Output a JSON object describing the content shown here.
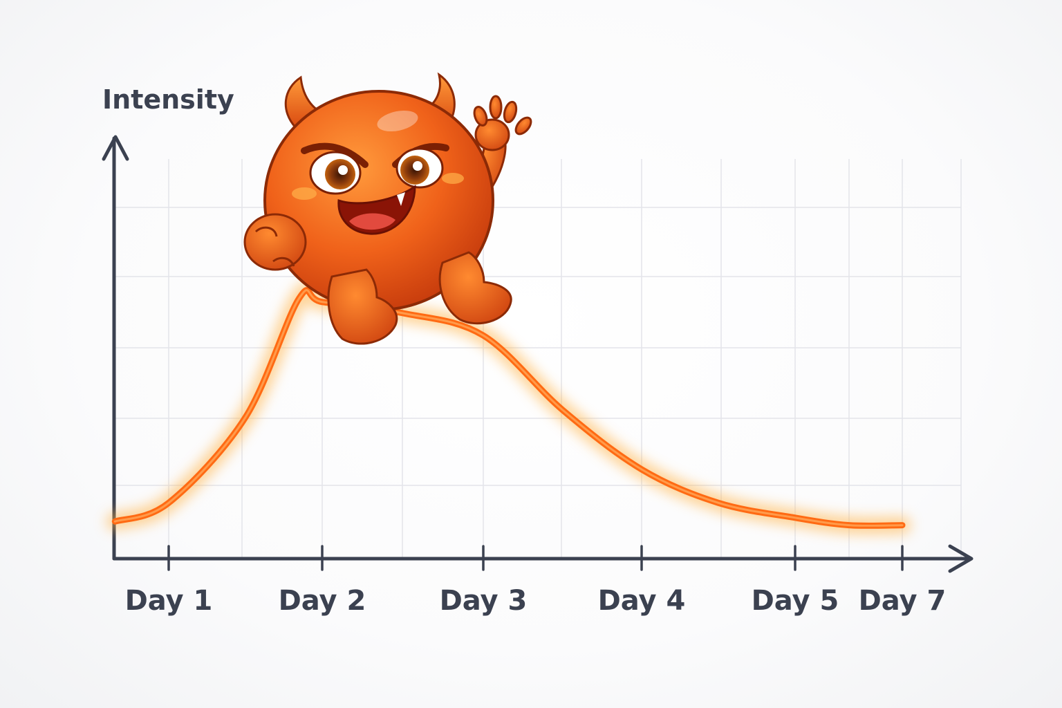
{
  "chart_data": {
    "type": "line",
    "title": "",
    "xlabel": "",
    "ylabel": "Intensity",
    "grid": true,
    "x_ticks": [
      "Day 1",
      "Day 2",
      "Day 3",
      "Day 4",
      "Day 5",
      "Day 7"
    ],
    "series": [
      {
        "name": "",
        "color": "#ff6a13",
        "points": [
          {
            "day": 0.65,
            "value": 0.5
          },
          {
            "day": 1.0,
            "value": 0.75
          },
          {
            "day": 1.5,
            "value": 1.9
          },
          {
            "day": 1.85,
            "value": 3.5
          },
          {
            "day": 2.0,
            "value": 3.45
          },
          {
            "day": 2.5,
            "value": 3.3
          },
          {
            "day": 3.0,
            "value": 3.0
          },
          {
            "day": 3.5,
            "value": 2.0
          },
          {
            "day": 4.0,
            "value": 1.2
          },
          {
            "day": 4.5,
            "value": 0.75
          },
          {
            "day": 5.0,
            "value": 0.55
          },
          {
            "day": 6.0,
            "value": 0.45
          },
          {
            "day": 7.0,
            "value": 0.45
          }
        ]
      }
    ],
    "mascot": "devil-icon"
  }
}
